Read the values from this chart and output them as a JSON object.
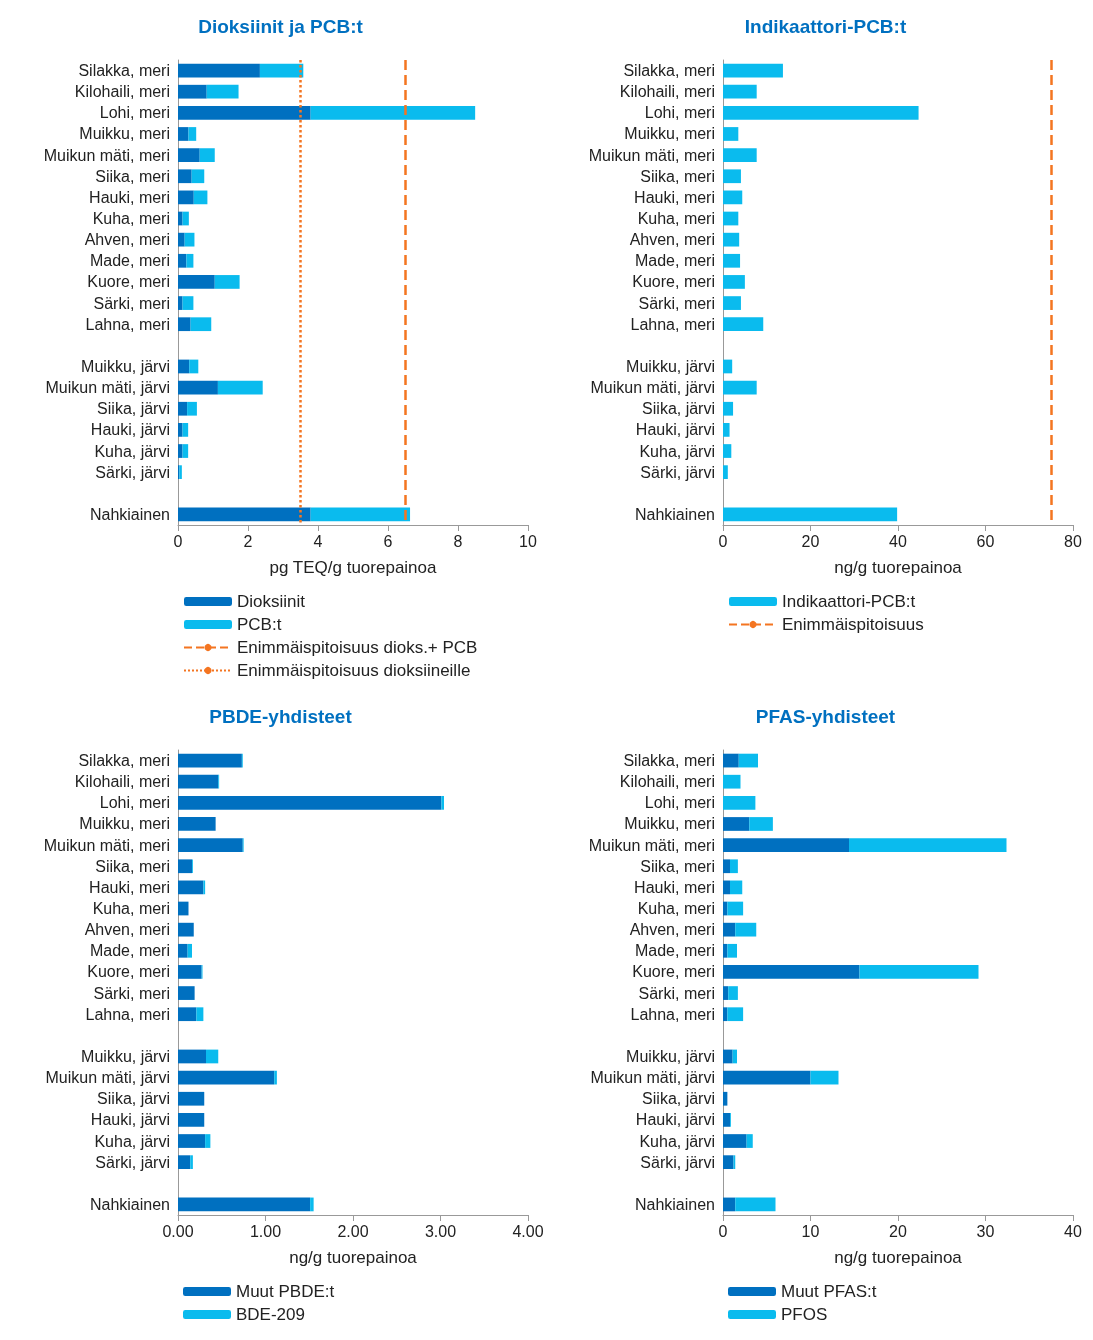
{
  "chart_data": [
    {
      "type": "bar",
      "orientation": "horizontal",
      "stacked": true,
      "title": "Dioksiinit ja PCB:t",
      "xlabel": "pg TEQ/g tuorepainoa",
      "legend": "bottom left",
      "grid": false,
      "categories": [
        "Silakka, meri",
        "Kilohaili, meri",
        "Lohi, meri",
        "Muikku, meri",
        "Muikun mäti, meri",
        "Siika, meri",
        "Hauki, meri",
        "Kuha, meri",
        "Ahven, meri",
        "Made, meri",
        "Kuore, meri",
        "Särki, meri",
        "Lahna, meri",
        null,
        "Muikku, järvi",
        "Muikun mäti, järvi",
        "Siika, järvi",
        "Hauki, järvi",
        "Kuha, järvi",
        "Särki, järvi",
        null,
        "Nahkiainen"
      ],
      "series": [
        {
          "name": "Dioksiinit",
          "color": "#0070c0",
          "values": [
            2.34,
            0.82,
            3.79,
            0.3,
            0.62,
            0.39,
            0.45,
            0.13,
            0.19,
            0.24,
            1.05,
            0.13,
            0.36,
            null,
            0.32,
            1.14,
            0.26,
            0.13,
            0.13,
            0.04,
            null,
            3.79
          ]
        },
        {
          "name": "PCB:t",
          "color": "#0abbee",
          "values": [
            1.24,
            0.91,
            4.7,
            0.22,
            0.43,
            0.36,
            0.39,
            0.18,
            0.28,
            0.2,
            0.71,
            0.31,
            0.59,
            null,
            0.26,
            1.28,
            0.28,
            0.16,
            0.16,
            0.07,
            null,
            2.84
          ]
        }
      ],
      "xlim": [
        0,
        10
      ],
      "xticks": [
        0,
        2,
        4,
        6,
        8,
        10
      ],
      "ref_lines": [
        {
          "axis": "x",
          "value": 6.5,
          "label": "Enimmäispitoisuus dioks.+ PCB",
          "color": "#f47521",
          "line_style": "dashed"
        },
        {
          "axis": "x",
          "value": 3.5,
          "label": "Enimmäispitoisuus dioksiineille",
          "color": "#f47521",
          "line_style": "dotted"
        }
      ]
    },
    {
      "type": "bar",
      "orientation": "horizontal",
      "title": "Indikaattori-PCB:t",
      "xlabel": "ng/g tuorepainoa",
      "legend": "bottom left",
      "grid": false,
      "categories": [
        "Silakka, meri",
        "Kilohaili, meri",
        "Lohi, meri",
        "Muikku, meri",
        "Muikun mäti, meri",
        "Siika, meri",
        "Hauki, meri",
        "Kuha, meri",
        "Ahven, meri",
        "Made, meri",
        "Kuore, meri",
        "Särki, meri",
        "Lahna, meri",
        null,
        "Muikku, järvi",
        "Muikun mäti, järvi",
        "Siika, järvi",
        "Hauki, järvi",
        "Kuha, järvi",
        "Särki, järvi",
        null,
        "Nahkiainen"
      ],
      "series": [
        {
          "name": "Indikaattori-PCB:t",
          "color": "#0abbee",
          "values": [
            13.7,
            7.7,
            44.7,
            3.5,
            7.7,
            4.1,
            4.4,
            3.5,
            3.7,
            3.9,
            5.0,
            4.1,
            9.2,
            null,
            2.1,
            7.7,
            2.3,
            1.5,
            1.9,
            1.1,
            null,
            39.8
          ]
        }
      ],
      "xlim": [
        0,
        80
      ],
      "xticks": [
        0,
        20,
        40,
        60,
        80
      ],
      "ref_lines": [
        {
          "axis": "x",
          "value": 75,
          "label": "Enimmäispitoisuus",
          "color": "#f47521",
          "line_style": "dashed"
        }
      ]
    },
    {
      "type": "bar",
      "orientation": "horizontal",
      "stacked": true,
      "title": "PBDE-yhdisteet",
      "xlabel": "ng/g tuorepainoa",
      "legend": "bottom left",
      "grid": false,
      "categories": [
        "Silakka, meri",
        "Kilohaili, meri",
        "Lohi, meri",
        "Muikku, meri",
        "Muikun mäti, meri",
        "Siika, meri",
        "Hauki, meri",
        "Kuha, meri",
        "Ahven, meri",
        "Made, meri",
        "Kuore, meri",
        "Särki, meri",
        "Lahna, meri",
        null,
        "Muikku, järvi",
        "Muikun mäti, järvi",
        "Siika, järvi",
        "Hauki, järvi",
        "Kuha, järvi",
        "Särki, järvi",
        null,
        "Nahkiainen"
      ],
      "series": [
        {
          "name": "Muut PBDE:t",
          "color": "#0070c0",
          "values": [
            0.73,
            0.46,
            3.01,
            0.43,
            0.74,
            0.16,
            0.29,
            0.12,
            0.18,
            0.11,
            0.27,
            0.19,
            0.21,
            null,
            0.32,
            1.1,
            0.3,
            0.3,
            0.31,
            0.14,
            null,
            1.51
          ]
        },
        {
          "name": "BDE-209",
          "color": "#0abbee",
          "values": [
            0.01,
            0.01,
            0.03,
            0,
            0.01,
            0.01,
            0.02,
            0,
            0,
            0.05,
            0.01,
            0,
            0.08,
            null,
            0.14,
            0.03,
            0,
            0,
            0.06,
            0.03,
            null,
            0.04
          ]
        }
      ],
      "xlim": [
        0,
        4
      ],
      "xticks": [
        {
          "value": 0,
          "label": "0.00"
        },
        {
          "value": 1,
          "label": "1.00"
        },
        {
          "value": 2,
          "label": "2.00"
        },
        {
          "value": 3,
          "label": "3.00"
        },
        {
          "value": 4,
          "label": "4.00"
        }
      ]
    },
    {
      "type": "bar",
      "orientation": "horizontal",
      "stacked": true,
      "title": "PFAS-yhdisteet",
      "xlabel": "ng/g tuorepainoa",
      "legend": "bottom left",
      "grid": false,
      "categories": [
        "Silakka, meri",
        "Kilohaili, meri",
        "Lohi, meri",
        "Muikku, meri",
        "Muikun mäti, meri",
        "Siika, meri",
        "Hauki, meri",
        "Kuha, meri",
        "Ahven, meri",
        "Made, meri",
        "Kuore, meri",
        "Särki, meri",
        "Lahna, meri",
        null,
        "Muikku, järvi",
        "Muikun mäti, järvi",
        "Siika, järvi",
        "Hauki, järvi",
        "Kuha, järvi",
        "Särki, järvi",
        null,
        "Nahkiainen"
      ],
      "series": [
        {
          "name": "Muut PFAS:t",
          "color": "#0070c0",
          "values": [
            1.8,
            0,
            0,
            3.0,
            14.4,
            0.8,
            0.8,
            0.5,
            1.4,
            0.5,
            15.6,
            0.6,
            0.5,
            null,
            1.1,
            10.0,
            0.5,
            0.8,
            2.7,
            1.2,
            null,
            1.4
          ]
        },
        {
          "name": "PFOS",
          "color": "#0abbee",
          "values": [
            2.2,
            2.0,
            3.7,
            2.7,
            18.0,
            0.9,
            1.4,
            1.8,
            2.4,
            1.1,
            13.6,
            1.1,
            1.8,
            null,
            0.5,
            3.2,
            0,
            0.1,
            0.7,
            0.2,
            null,
            4.6
          ]
        }
      ],
      "xlim": [
        0,
        40
      ],
      "xticks": [
        0,
        10,
        20,
        30,
        40
      ]
    }
  ]
}
